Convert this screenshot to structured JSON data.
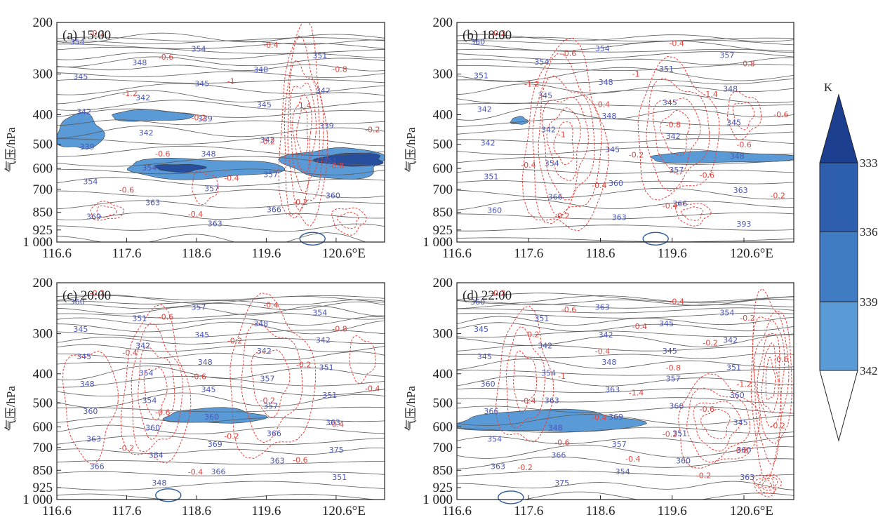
{
  "figure": {
    "colorbar": {
      "unit": "K",
      "levels": [
        "333",
        "336",
        "339",
        "342"
      ],
      "fills": [
        "#1c3f8f",
        "#2e5fae",
        "#3f7cc4",
        "#5a9ad6"
      ]
    },
    "colors": {
      "theta": "#5a5a5a",
      "omega": "#e8423a",
      "fill_light": "#5a9ad6",
      "fill_dark": "#274f9e",
      "ellipse": "#2c5aa0"
    }
  },
  "chart_data": [
    {
      "type": "contour",
      "title": "(a) 15:00",
      "ylabel": "气压/hPa",
      "xticks": [
        "116.6",
        "117.6",
        "118.6",
        "119.6",
        "120.6°E"
      ],
      "yticks": [
        "200",
        "300",
        "400",
        "500",
        "600",
        "700",
        "850",
        "925",
        "1 000"
      ],
      "theta_labels": [
        "354",
        "354",
        "351",
        "348",
        "348",
        "345",
        "345",
        "342",
        "342",
        "345",
        "342",
        "339",
        "339",
        "342",
        "342",
        "339",
        "348",
        "351",
        "354",
        "357",
        "354",
        "357",
        "360",
        "363",
        "366",
        "369",
        "363"
      ],
      "omega_labels": [
        "-0.2",
        "-0.4",
        "-0.6",
        "-0.8",
        "-1",
        "-1.2",
        "-1.4",
        "-0.2",
        "-0.2",
        "-0.2",
        "-0.6",
        "-0.8",
        "-0.4",
        "-0.6",
        "-0.2",
        "-0.4"
      ]
    },
    {
      "type": "contour",
      "title": "(b) 18:00",
      "ylabel": "气压/hPa",
      "xticks": [
        "116.6",
        "117.6",
        "118.6",
        "119.6",
        "120.6°E"
      ],
      "yticks": [
        "200",
        "300",
        "400",
        "500",
        "600",
        "700",
        "850",
        "925",
        "1 000"
      ],
      "theta_labels": [
        "360",
        "354",
        "357",
        "354",
        "351",
        "351",
        "348",
        "348",
        "345",
        "345",
        "342",
        "348",
        "345",
        "342",
        "342",
        "342",
        "345",
        "348",
        "354",
        "357",
        "351",
        "360",
        "363",
        "366",
        "366",
        "360",
        "363",
        "393"
      ],
      "omega_labels": [
        "-0.2",
        "-0.4",
        "-0.6",
        "-0.8",
        "-1",
        "-1.2",
        "-1.4",
        "-0.4",
        "-0.6",
        "-0.8",
        "-1",
        "-0.6",
        "-0.2",
        "-0.4",
        "-0.6",
        "-0.4",
        "-0.2",
        "-0.4",
        "-0.2"
      ]
    },
    {
      "type": "contour",
      "title": "(c) 20:00",
      "ylabel": "气压/hPa",
      "xticks": [
        "116.6",
        "117.6",
        "118.6",
        "119.6",
        "120.6°E"
      ],
      "yticks": [
        "200",
        "300",
        "400",
        "500",
        "600",
        "700",
        "850",
        "925",
        "1 000"
      ],
      "theta_labels": [
        "360",
        "357",
        "354",
        "351",
        "348",
        "345",
        "345",
        "342",
        "342",
        "342",
        "345",
        "348",
        "351",
        "354",
        "357",
        "348",
        "345",
        "351",
        "354",
        "357",
        "360",
        "360",
        "363",
        "360",
        "366",
        "363",
        "369",
        "375",
        "384",
        "363",
        "366",
        "366",
        "351",
        "348"
      ],
      "omega_labels": [
        "-0.2",
        "-0.4",
        "-0.6",
        "-0.8",
        "-0.2",
        "-0.4",
        "-0.2",
        "-0.6",
        "-0.4",
        "-0.2",
        "-0.6",
        "-0.4",
        "-0.2",
        "-0.2",
        "-0.6",
        "-0.4"
      ]
    },
    {
      "type": "contour",
      "title": "(d) 22:00",
      "ylabel": "气压/hPa",
      "xticks": [
        "116.6",
        "117.6",
        "118.6",
        "119.6",
        "120.6°E"
      ],
      "yticks": [
        "200",
        "300",
        "400",
        "500",
        "600",
        "700",
        "850",
        "925",
        "1 000"
      ],
      "theta_labels": [
        "360",
        "363",
        "354",
        "351",
        "345",
        "345",
        "342",
        "342",
        "342",
        "345",
        "345",
        "348",
        "351",
        "354",
        "357",
        "360",
        "363",
        "360",
        "363",
        "366",
        "366",
        "369",
        "345",
        "348",
        "351",
        "354",
        "357",
        "360",
        "366",
        "360",
        "363",
        "354",
        "363",
        "375"
      ],
      "omega_labels": [
        "-0.2",
        "-0.4",
        "-0.6",
        "-0.2",
        "-0.4",
        "-0.2",
        "-0.2",
        "-0.4",
        "-0.6",
        "-0.8",
        "-1",
        "-1.2",
        "-1.4",
        "-0.4",
        "-0.6",
        "-0.4",
        "-0.2",
        "-0.2",
        "-0.6",
        "-0.8",
        "-0.4",
        "-0.2",
        "-0.2"
      ]
    }
  ]
}
